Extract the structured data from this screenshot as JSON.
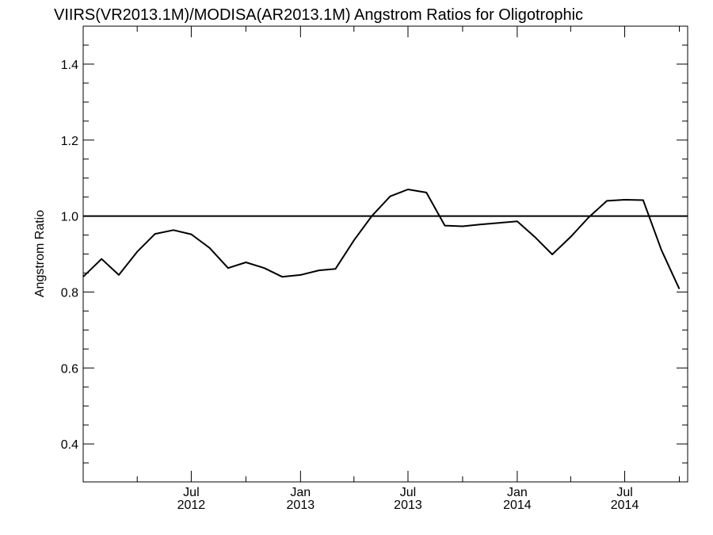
{
  "chart_data": {
    "type": "line",
    "title": "VIIRS(VR2013.1M)/MODISA(AR2013.1M)  Angstrom Ratios for Oligotrophic",
    "xlabel": "",
    "ylabel": "Angstrom Ratio",
    "ylim": [
      0.3,
      1.5
    ],
    "xlim": [
      "2012-01-01",
      "2014-10-15"
    ],
    "y_ticks": [
      {
        "value": 0.4,
        "label": "0.4"
      },
      {
        "value": 0.6,
        "label": "0.6"
      },
      {
        "value": 0.8,
        "label": "0.8"
      },
      {
        "value": 1.0,
        "label": "1.0"
      },
      {
        "value": 1.2,
        "label": "1.2"
      },
      {
        "value": 1.4,
        "label": "1.4"
      }
    ],
    "x_ticks": [
      {
        "date": "2012-07-01",
        "month": "Jul",
        "year": "2012"
      },
      {
        "date": "2013-01-01",
        "month": "Jan",
        "year": "2013"
      },
      {
        "date": "2013-07-01",
        "month": "Jul",
        "year": "2013"
      },
      {
        "date": "2014-01-01",
        "month": "Jan",
        "year": "2014"
      },
      {
        "date": "2014-07-01",
        "month": "Jul",
        "year": "2014"
      }
    ],
    "reference_line": {
      "y": 1.0
    },
    "grid": false,
    "series": [
      {
        "color": "#000000",
        "points": [
          {
            "x": "2012-01-01",
            "y": 0.84
          },
          {
            "x": "2012-02-01",
            "y": 0.887
          },
          {
            "x": "2012-03-01",
            "y": 0.845
          },
          {
            "x": "2012-04-01",
            "y": 0.906
          },
          {
            "x": "2012-05-01",
            "y": 0.953
          },
          {
            "x": "2012-06-01",
            "y": 0.963
          },
          {
            "x": "2012-07-01",
            "y": 0.952
          },
          {
            "x": "2012-08-01",
            "y": 0.916
          },
          {
            "x": "2012-09-01",
            "y": 0.863
          },
          {
            "x": "2012-10-01",
            "y": 0.878
          },
          {
            "x": "2012-11-01",
            "y": 0.863
          },
          {
            "x": "2012-12-01",
            "y": 0.84
          },
          {
            "x": "2013-01-01",
            "y": 0.845
          },
          {
            "x": "2013-02-01",
            "y": 0.857
          },
          {
            "x": "2013-03-01",
            "y": 0.861
          },
          {
            "x": "2013-04-01",
            "y": 0.936
          },
          {
            "x": "2013-05-01",
            "y": 1.0
          },
          {
            "x": "2013-06-01",
            "y": 1.052
          },
          {
            "x": "2013-07-01",
            "y": 1.07
          },
          {
            "x": "2013-08-01",
            "y": 1.062
          },
          {
            "x": "2013-09-01",
            "y": 0.975
          },
          {
            "x": "2013-10-01",
            "y": 0.973
          },
          {
            "x": "2013-11-01",
            "y": 0.978
          },
          {
            "x": "2013-12-01",
            "y": 0.982
          },
          {
            "x": "2014-01-01",
            "y": 0.986
          },
          {
            "x": "2014-02-01",
            "y": 0.943
          },
          {
            "x": "2014-03-01",
            "y": 0.899
          },
          {
            "x": "2014-04-01",
            "y": 0.945
          },
          {
            "x": "2014-05-01",
            "y": 0.996
          },
          {
            "x": "2014-06-01",
            "y": 1.04
          },
          {
            "x": "2014-07-01",
            "y": 1.043
          },
          {
            "x": "2014-08-01",
            "y": 1.042
          },
          {
            "x": "2014-09-01",
            "y": 0.91
          },
          {
            "x": "2014-10-01",
            "y": 0.808
          }
        ]
      }
    ]
  }
}
